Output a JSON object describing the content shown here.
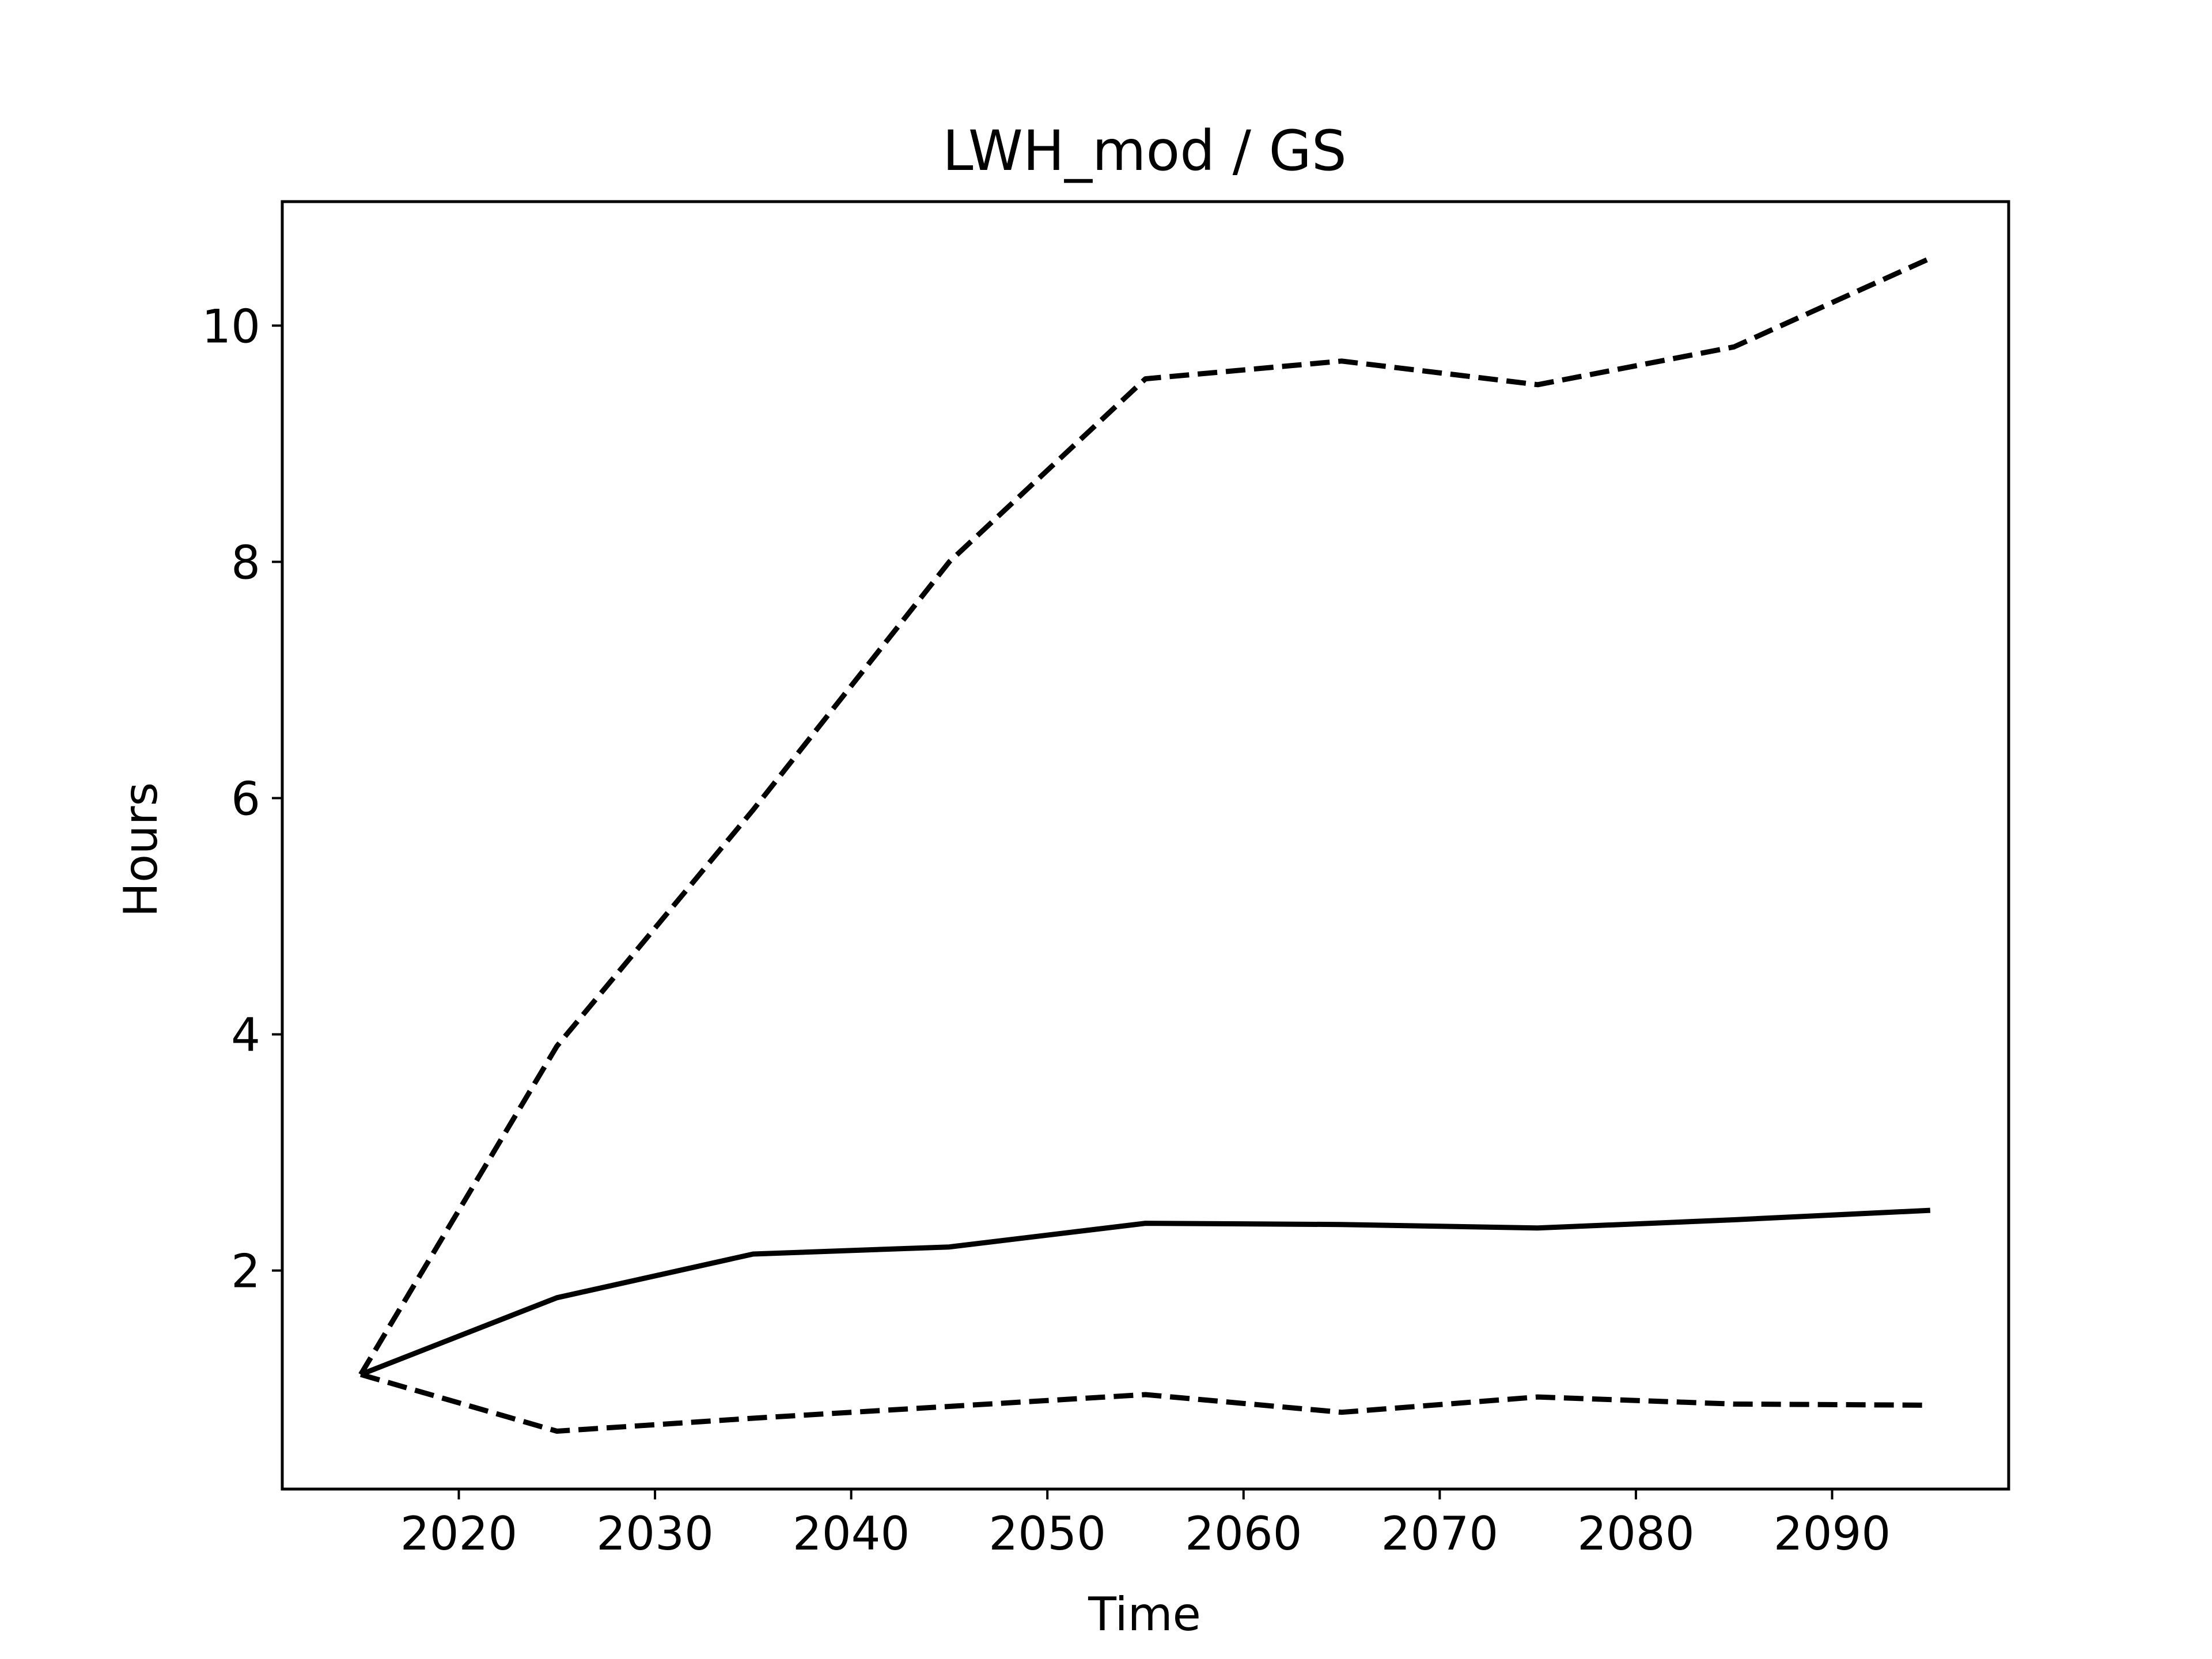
{
  "chart_data": {
    "type": "line",
    "title": "LWH_mod / GS",
    "xlabel": "Time",
    "ylabel": "Hours",
    "xlim": [
      2011,
      2099
    ],
    "ylim": [
      0.15,
      11.05
    ],
    "xticks": [
      2020,
      2030,
      2040,
      2050,
      2060,
      2070,
      2080,
      2090
    ],
    "yticks": [
      2,
      4,
      6,
      8,
      10
    ],
    "grid": false,
    "legend": "none",
    "x": [
      2015,
      2025,
      2035,
      2045,
      2055,
      2065,
      2075,
      2085,
      2095
    ],
    "series": [
      {
        "style": "solid",
        "color": "#000000",
        "values": [
          1.12,
          1.77,
          2.14,
          2.2,
          2.4,
          2.39,
          2.36,
          2.43,
          2.51
        ]
      },
      {
        "style": "dashed",
        "color": "#000000",
        "values": [
          1.12,
          3.9,
          5.9,
          8.0,
          9.55,
          9.7,
          9.5,
          9.82,
          10.57
        ]
      },
      {
        "style": "dashed",
        "color": "#000000",
        "values": [
          1.12,
          0.64,
          0.75,
          0.85,
          0.95,
          0.8,
          0.93,
          0.87,
          0.86
        ]
      }
    ]
  }
}
